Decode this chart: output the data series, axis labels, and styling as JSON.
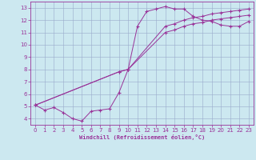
{
  "background_color": "#cce8f0",
  "grid_color": "#99aacc",
  "line_color": "#993399",
  "marker_color": "#993399",
  "xlabel": "Windchill (Refroidissement éolien,°C)",
  "xlim": [
    -0.5,
    23.5
  ],
  "ylim": [
    3.5,
    13.5
  ],
  "xticks": [
    0,
    1,
    2,
    3,
    4,
    5,
    6,
    7,
    8,
    9,
    10,
    11,
    12,
    13,
    14,
    15,
    16,
    17,
    18,
    19,
    20,
    21,
    22,
    23
  ],
  "yticks": [
    4,
    5,
    6,
    7,
    8,
    9,
    10,
    11,
    12,
    13
  ],
  "series": [
    {
      "x": [
        0,
        1,
        2,
        3,
        4,
        5,
        6,
        7,
        8,
        9,
        10,
        11,
        12,
        13,
        14,
        15,
        16,
        17,
        18,
        19,
        20,
        21,
        22,
        23
      ],
      "y": [
        5.1,
        4.7,
        4.9,
        4.5,
        4.0,
        3.8,
        4.6,
        4.7,
        4.8,
        6.1,
        8.0,
        11.5,
        12.7,
        12.9,
        13.1,
        12.9,
        12.9,
        12.3,
        12.0,
        11.9,
        11.6,
        11.5,
        11.5,
        11.9
      ]
    },
    {
      "x": [
        0,
        9,
        10,
        14,
        15,
        16,
        17,
        18,
        19,
        20,
        21,
        22,
        23
      ],
      "y": [
        5.1,
        7.8,
        8.0,
        11.5,
        11.7,
        12.0,
        12.2,
        12.3,
        12.5,
        12.6,
        12.7,
        12.8,
        12.9
      ]
    },
    {
      "x": [
        0,
        9,
        10,
        14,
        15,
        16,
        17,
        18,
        19,
        20,
        21,
        22,
        23
      ],
      "y": [
        5.1,
        7.8,
        8.0,
        11.0,
        11.2,
        11.5,
        11.7,
        11.8,
        12.0,
        12.1,
        12.2,
        12.3,
        12.4
      ]
    }
  ]
}
